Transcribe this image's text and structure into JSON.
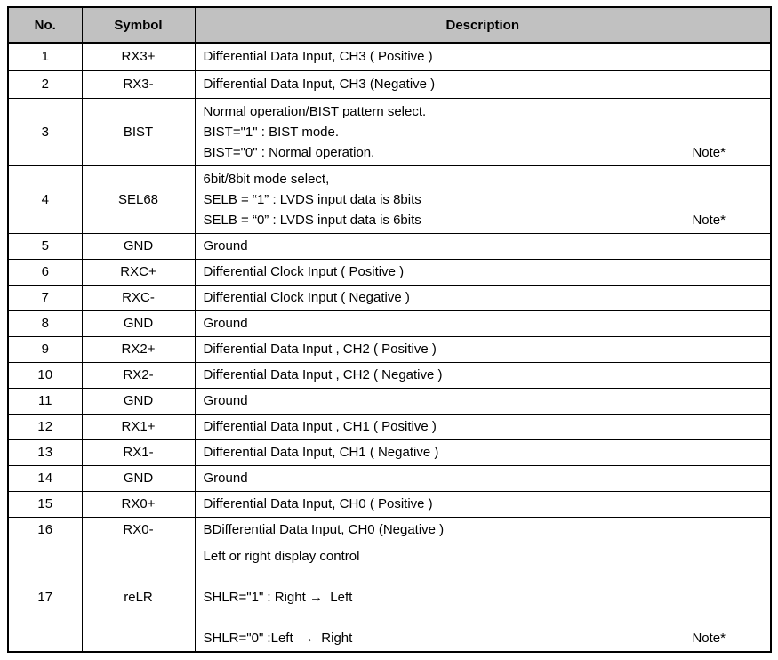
{
  "table": {
    "headers": [
      "No.",
      "Symbol",
      "Description"
    ],
    "note_label": "Note*",
    "rows": [
      {
        "no": "1",
        "symbol": "RX3+",
        "desc": [
          "Differential Data Input, CH3 ( Positive )"
        ],
        "note": false
      },
      {
        "no": "2",
        "symbol": "RX3-",
        "desc": [
          "Differential Data Input, CH3 (Negative )"
        ],
        "note": false
      },
      {
        "no": "3",
        "symbol": "BIST",
        "desc": [
          "Normal operation/BIST pattern select.",
          "BIST=\"1\" : BIST mode.",
          "BIST=\"0\" : Normal operation."
        ],
        "note": true
      },
      {
        "no": "4",
        "symbol": "SEL68",
        "desc": [
          "6bit/8bit mode select,",
          "SELB = “1” : LVDS input data is 8bits",
          "SELB = “0” : LVDS input data is 6bits"
        ],
        "note": true
      },
      {
        "no": "5",
        "symbol": "GND",
        "desc": [
          "Ground"
        ],
        "note": false
      },
      {
        "no": "6",
        "symbol": "RXC+",
        "desc": [
          "Differential Clock Input ( Positive )"
        ],
        "note": false
      },
      {
        "no": "7",
        "symbol": "RXC-",
        "desc": [
          "Differential Clock Input ( Negative )"
        ],
        "note": false
      },
      {
        "no": "8",
        "symbol": "GND",
        "desc": [
          "Ground"
        ],
        "note": false
      },
      {
        "no": "9",
        "symbol": "RX2+",
        "desc": [
          "Differential Data Input , CH2 ( Positive )"
        ],
        "note": false
      },
      {
        "no": "10",
        "symbol": "RX2-",
        "desc": [
          "Differential Data Input , CH2 ( Negative )"
        ],
        "note": false
      },
      {
        "no": "11",
        "symbol": "GND",
        "desc": [
          "Ground"
        ],
        "note": false
      },
      {
        "no": "12",
        "symbol": "RX1+",
        "desc": [
          "Differential Data Input , CH1 ( Positive )"
        ],
        "note": false
      },
      {
        "no": "13",
        "symbol": "RX1-",
        "desc": [
          "Differential Data Input, CH1 ( Negative )"
        ],
        "note": false
      },
      {
        "no": "14",
        "symbol": "GND",
        "desc": [
          "Ground"
        ],
        "note": false
      },
      {
        "no": "15",
        "symbol": "RX0+",
        "desc": [
          "Differential Data Input, CH0 ( Positive )"
        ],
        "note": false
      },
      {
        "no": "16",
        "symbol": "RX0-",
        "desc": [
          "BDifferential Data Input, CH0 (Negative )"
        ],
        "note": false
      },
      {
        "no": "17",
        "symbol": "reLR",
        "desc": [
          "Left or right display control",
          "",
          "SHLR=\"1\" : Right →  Left",
          "",
          "SHLR=\"0\" :Left  →  Right"
        ],
        "note": true
      }
    ]
  },
  "colors": {
    "header_bg": "#c1c1c1",
    "border": "#000000",
    "text": "#000000"
  }
}
